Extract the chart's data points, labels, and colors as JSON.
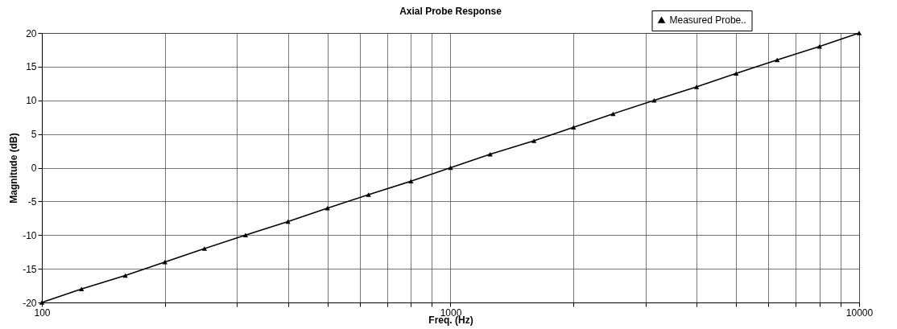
{
  "chart_data": {
    "type": "line",
    "title": "Axial Probe Response",
    "xlabel": "Freq. (Hz)",
    "ylabel": "Magnitude (dB)",
    "x": [
      100,
      125,
      160,
      200,
      250,
      315,
      400,
      500,
      630,
      800,
      1000,
      1250,
      1600,
      2000,
      2500,
      3150,
      4000,
      5000,
      6300,
      8000,
      10000
    ],
    "series": [
      {
        "name": "Measured Probe..",
        "color": "#000000",
        "values": [
          -20,
          -18,
          -16,
          -14,
          -12,
          -10,
          -8,
          -6,
          -4,
          -2,
          0,
          2,
          4,
          6,
          8,
          10,
          12,
          14,
          16,
          18,
          20
        ]
      }
    ],
    "log": "x",
    "xlim": [
      100,
      10000
    ],
    "xticks": [
      100,
      {
        "value": 200,
        "label": null
      },
      {
        "value": 300,
        "label": null
      },
      {
        "value": 400,
        "label": null
      },
      {
        "value": 500,
        "label": null
      },
      {
        "value": 600,
        "label": null
      },
      {
        "value": 700,
        "label": null
      },
      {
        "value": 800,
        "label": null
      },
      {
        "value": 900,
        "label": null
      },
      1000,
      {
        "value": 2000,
        "label": null
      },
      {
        "value": 3000,
        "label": null
      },
      {
        "value": 4000,
        "label": null
      },
      {
        "value": 5000,
        "label": null
      },
      {
        "value": 6000,
        "label": null
      },
      {
        "value": 7000,
        "label": null
      },
      {
        "value": 8000,
        "label": null
      },
      {
        "value": 9000,
        "label": null
      },
      10000
    ],
    "ylim": [
      -20,
      20
    ],
    "yticks": [
      -20,
      -15,
      -10,
      -5,
      0,
      5,
      10,
      15,
      20
    ],
    "grid": true,
    "legend": "top right",
    "marker": "triangle",
    "line_style": "solid"
  }
}
